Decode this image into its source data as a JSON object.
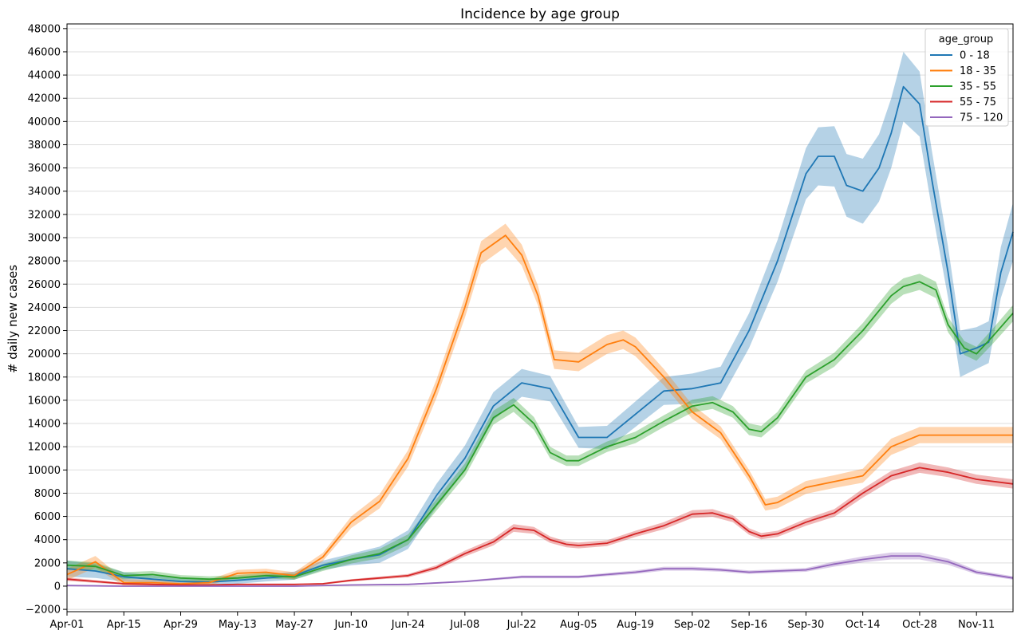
{
  "chart_data": {
    "type": "line",
    "title": "Incidence by age group",
    "xlabel": "",
    "ylabel": "# daily new cases",
    "grid": "horizontal",
    "legend": {
      "title": "age_group",
      "position": "top-right"
    },
    "x_tick_labels": [
      "Apr-01",
      "Apr-15",
      "Apr-29",
      "May-13",
      "May-27",
      "Jun-10",
      "Jun-24",
      "Jul-08",
      "Jul-22",
      "Aug-05",
      "Aug-19",
      "Sep-02",
      "Sep-16",
      "Sep-30",
      "Oct-14",
      "Oct-28",
      "Nov-11"
    ],
    "x_range": [
      "Apr-01",
      "Nov-20"
    ],
    "y_ticks": [
      -2000,
      0,
      2000,
      4000,
      6000,
      8000,
      10000,
      12000,
      14000,
      16000,
      18000,
      20000,
      22000,
      24000,
      26000,
      28000,
      30000,
      32000,
      34000,
      36000,
      38000,
      40000,
      42000,
      44000,
      46000,
      48000
    ],
    "ylim": [
      -2200,
      48400
    ],
    "series": [
      {
        "name": "0 - 18",
        "color": "#1f77b4",
        "x": [
          "Apr-01",
          "Apr-08",
          "Apr-15",
          "Apr-22",
          "Apr-29",
          "May-06",
          "May-13",
          "May-20",
          "May-27",
          "Jun-03",
          "Jun-10",
          "Jun-17",
          "Jun-24",
          "Jul-01",
          "Jul-08",
          "Jul-15",
          "Jul-22",
          "Jul-29",
          "Aug-05",
          "Aug-12",
          "Aug-19",
          "Aug-26",
          "Sep-02",
          "Sep-09",
          "Sep-16",
          "Sep-23",
          "Sep-30",
          "Oct-03",
          "Oct-07",
          "Oct-10",
          "Oct-14",
          "Oct-18",
          "Oct-21",
          "Oct-24",
          "Oct-28",
          "Oct-31",
          "Nov-04",
          "Nov-07",
          "Nov-11",
          "Nov-14",
          "Nov-17",
          "Nov-20"
        ],
        "y": [
          1500,
          1300,
          800,
          600,
          400,
          350,
          500,
          700,
          900,
          1800,
          2300,
          2700,
          4000,
          7800,
          11000,
          15500,
          17500,
          17000,
          12800,
          12800,
          14800,
          16800,
          17000,
          17500,
          22000,
          28000,
          35500,
          37000,
          37000,
          34500,
          34000,
          36000,
          39000,
          43000,
          41500,
          35000,
          27000,
          20000,
          20500,
          21000,
          27000,
          30500
        ],
        "band": [
          700,
          600,
          400,
          300,
          300,
          300,
          300,
          300,
          350,
          400,
          500,
          700,
          800,
          1000,
          1100,
          1200,
          1200,
          1100,
          900,
          1000,
          1100,
          1200,
          1300,
          1400,
          1500,
          1800,
          2200,
          2500,
          2600,
          2700,
          2800,
          2900,
          3000,
          3000,
          2800,
          2500,
          2200,
          2000,
          1800,
          1800,
          2200,
          2500
        ]
      },
      {
        "name": "18 - 35",
        "color": "#ff7f0e",
        "x": [
          "Apr-01",
          "Apr-08",
          "Apr-15",
          "Apr-22",
          "Apr-29",
          "May-06",
          "May-13",
          "May-20",
          "May-27",
          "Jun-03",
          "Jun-10",
          "Jun-17",
          "Jun-24",
          "Jul-01",
          "Jul-08",
          "Jul-12",
          "Jul-18",
          "Jul-22",
          "Jul-26",
          "Jul-30",
          "Aug-05",
          "Aug-12",
          "Aug-16",
          "Aug-19",
          "Aug-26",
          "Sep-02",
          "Sep-09",
          "Sep-16",
          "Sep-20",
          "Sep-23",
          "Sep-30",
          "Oct-07",
          "Oct-14",
          "Oct-21",
          "Oct-28",
          "Nov-04",
          "Nov-11",
          "Nov-20"
        ],
        "y": [
          1000,
          2100,
          300,
          300,
          200,
          300,
          1100,
          1200,
          900,
          2500,
          5500,
          7300,
          11000,
          17000,
          24000,
          28700,
          30200,
          28500,
          25000,
          19500,
          19300,
          20800,
          21200,
          20600,
          18000,
          15000,
          13200,
          9500,
          7000,
          7200,
          8500,
          9000,
          9500,
          12000,
          13000,
          13000,
          13000,
          13000
        ],
        "band": [
          500,
          500,
          300,
          250,
          250,
          250,
          300,
          300,
          300,
          350,
          500,
          600,
          700,
          800,
          900,
          1000,
          1000,
          900,
          850,
          800,
          800,
          800,
          800,
          800,
          700,
          600,
          550,
          500,
          500,
          500,
          550,
          550,
          600,
          700,
          700,
          700,
          700,
          700
        ]
      },
      {
        "name": "35 - 55",
        "color": "#2ca02c",
        "x": [
          "Apr-01",
          "Apr-08",
          "Apr-15",
          "Apr-22",
          "Apr-29",
          "May-06",
          "May-13",
          "May-20",
          "May-27",
          "Jun-03",
          "Jun-10",
          "Jun-17",
          "Jun-24",
          "Jul-01",
          "Jul-08",
          "Jul-15",
          "Jul-20",
          "Jul-25",
          "Jul-29",
          "Aug-02",
          "Aug-05",
          "Aug-12",
          "Aug-19",
          "Aug-26",
          "Sep-02",
          "Sep-07",
          "Sep-12",
          "Sep-16",
          "Sep-19",
          "Sep-23",
          "Sep-30",
          "Oct-07",
          "Oct-14",
          "Oct-21",
          "Oct-24",
          "Oct-28",
          "Nov-01",
          "Nov-04",
          "Nov-08",
          "Nov-11",
          "Nov-15",
          "Nov-20"
        ],
        "y": [
          1800,
          1700,
          900,
          1000,
          700,
          600,
          700,
          900,
          800,
          1600,
          2300,
          2800,
          4000,
          7000,
          10000,
          14500,
          15600,
          14000,
          11500,
          10800,
          10800,
          12000,
          12800,
          14200,
          15500,
          15800,
          15000,
          13500,
          13300,
          14500,
          18000,
          19500,
          22000,
          25000,
          25800,
          26200,
          25500,
          22500,
          20500,
          20000,
          21500,
          23500
        ],
        "band": [
          400,
          350,
          300,
          300,
          250,
          250,
          250,
          250,
          250,
          300,
          350,
          400,
          450,
          500,
          550,
          600,
          600,
          550,
          500,
          450,
          450,
          450,
          500,
          500,
          550,
          550,
          500,
          500,
          500,
          500,
          550,
          600,
          650,
          700,
          700,
          700,
          700,
          650,
          600,
          600,
          650,
          700
        ]
      },
      {
        "name": "55 - 75",
        "color": "#d62728",
        "x": [
          "Apr-01",
          "Apr-08",
          "Apr-15",
          "Apr-22",
          "Apr-29",
          "May-06",
          "May-13",
          "May-20",
          "May-27",
          "Jun-03",
          "Jun-10",
          "Jun-17",
          "Jun-24",
          "Jul-01",
          "Jul-08",
          "Jul-15",
          "Jul-20",
          "Jul-25",
          "Jul-29",
          "Aug-02",
          "Aug-05",
          "Aug-12",
          "Aug-19",
          "Aug-26",
          "Sep-02",
          "Sep-07",
          "Sep-12",
          "Sep-16",
          "Sep-19",
          "Sep-23",
          "Sep-30",
          "Oct-07",
          "Oct-14",
          "Oct-21",
          "Oct-28",
          "Nov-04",
          "Nov-11",
          "Nov-20"
        ],
        "y": [
          600,
          400,
          200,
          150,
          100,
          100,
          150,
          150,
          150,
          200,
          500,
          700,
          900,
          1600,
          2800,
          3800,
          5000,
          4800,
          4000,
          3600,
          3500,
          3700,
          4500,
          5200,
          6200,
          6300,
          5800,
          4700,
          4300,
          4500,
          5500,
          6300,
          8000,
          9500,
          10200,
          9800,
          9200,
          8800
        ],
        "band": [
          150,
          120,
          80,
          70,
          60,
          60,
          60,
          60,
          60,
          70,
          100,
          120,
          150,
          200,
          250,
          300,
          330,
          300,
          280,
          250,
          250,
          250,
          270,
          300,
          330,
          330,
          300,
          280,
          270,
          270,
          300,
          330,
          380,
          420,
          450,
          420,
          400,
          400
        ]
      },
      {
        "name": "75 - 120",
        "color": "#9467bd",
        "x": [
          "Apr-01",
          "Apr-15",
          "Apr-29",
          "May-13",
          "May-27",
          "Jun-10",
          "Jun-24",
          "Jul-08",
          "Jul-22",
          "Aug-05",
          "Aug-19",
          "Aug-26",
          "Sep-02",
          "Sep-09",
          "Sep-16",
          "Sep-23",
          "Sep-30",
          "Oct-07",
          "Oct-14",
          "Oct-21",
          "Oct-28",
          "Nov-04",
          "Nov-11",
          "Nov-20"
        ],
        "y": [
          50,
          0,
          0,
          0,
          0,
          100,
          150,
          400,
          800,
          800,
          1200,
          1500,
          1500,
          1400,
          1200,
          1300,
          1400,
          1900,
          2300,
          2600,
          2600,
          2100,
          1200,
          700
        ],
        "band": [
          50,
          40,
          40,
          40,
          40,
          50,
          60,
          80,
          120,
          120,
          150,
          170,
          170,
          160,
          150,
          150,
          170,
          220,
          260,
          300,
          300,
          260,
          180,
          150
        ]
      }
    ]
  }
}
